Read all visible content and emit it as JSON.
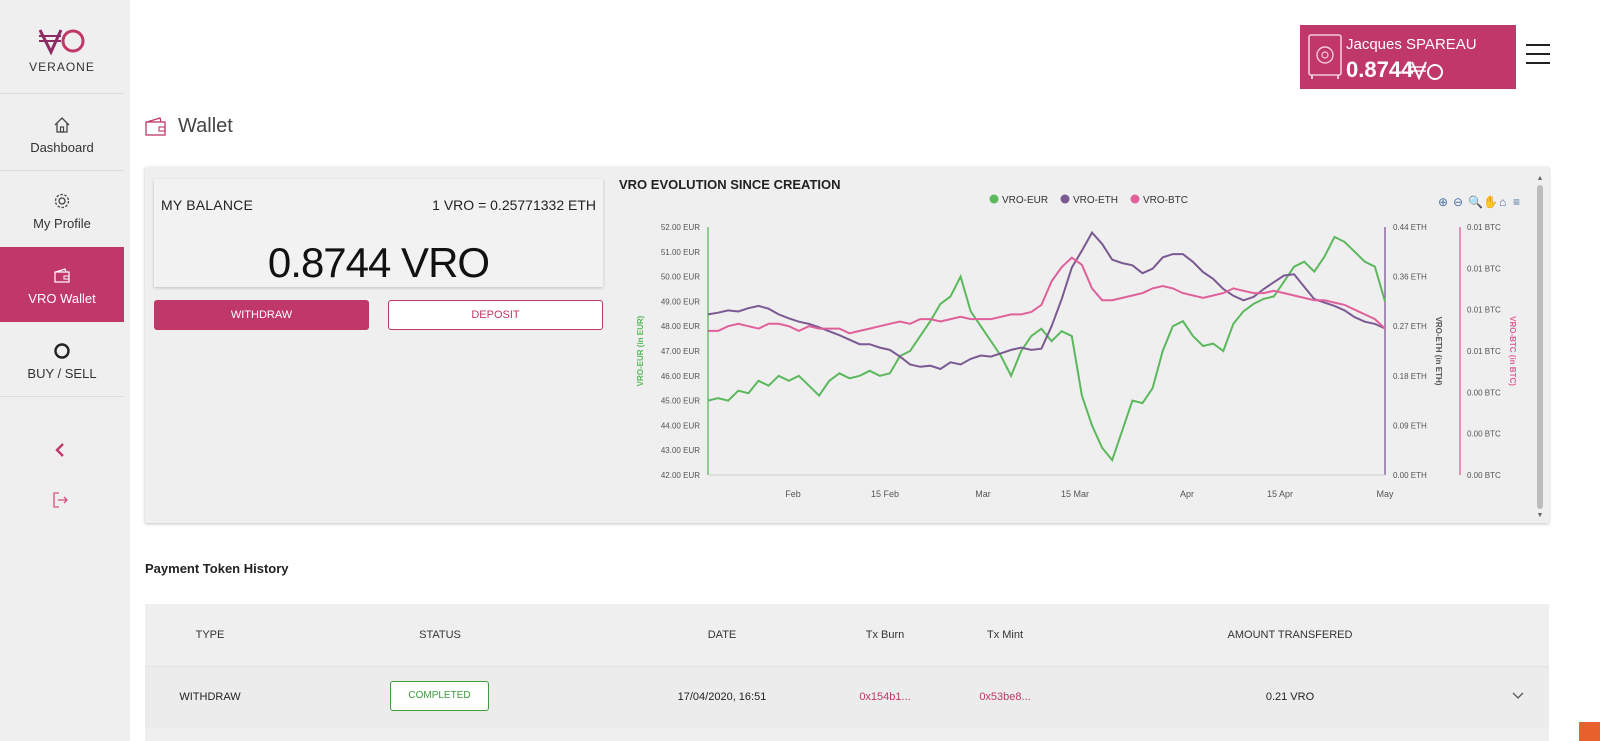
{
  "brand": {
    "name": "VERAONE",
    "accent_color": "#c0376a"
  },
  "sidebar": {
    "items": [
      {
        "label": "Dashboard",
        "icon": "home-icon"
      },
      {
        "label": "My Profile",
        "icon": "gear-icon"
      },
      {
        "label": "VRO Wallet",
        "icon": "wallet-icon",
        "active": true
      },
      {
        "label": "BUY / SELL",
        "icon": "circle-icon"
      }
    ],
    "collapse_icon": "chevron-left-icon",
    "logout_icon": "logout-icon"
  },
  "header": {
    "user_name": "Jacques SPAREAU",
    "user_balance": "0.8744",
    "currency_icon": "vro-symbol-icon",
    "menu_icon": "hamburger-icon"
  },
  "page": {
    "title": "Wallet",
    "title_icon": "wallet-icon"
  },
  "balance": {
    "label": "MY BALANCE",
    "rate": "1 VRO = 0.25771332 ETH",
    "amount": "0.8744 VRO",
    "withdraw_label": "WITHDRAW",
    "deposit_label": "DEPOSIT"
  },
  "chart_data": {
    "type": "line",
    "title": "VRO EVOLUTION SINCE CREATION",
    "legend": [
      "VRO-EUR",
      "VRO-ETH",
      "VRO-BTC"
    ],
    "legend_position": "top-center",
    "colors": {
      "VRO-EUR": "#5cb85c",
      "VRO-ETH": "#7b5a93",
      "VRO-BTC": "#e0609b"
    },
    "x_ticks": [
      "Feb",
      "15 Feb",
      "Mar",
      "15 Mar",
      "Apr",
      "15 Apr",
      "May"
    ],
    "y_left": {
      "label": "VRO-EUR (in EUR)",
      "ticks": [
        "52.00 EUR",
        "51.00 EUR",
        "50.00 EUR",
        "49.00 EUR",
        "48.00 EUR",
        "47.00 EUR",
        "46.00 EUR",
        "45.00 EUR",
        "44.00 EUR",
        "43.00 EUR",
        "42.00 EUR"
      ],
      "range": [
        42,
        52
      ]
    },
    "y_right1": {
      "label": "VRO-ETH (in ETH)",
      "ticks": [
        "0.44 ETH",
        "0.36 ETH",
        "0.27 ETH",
        "0.18 ETH",
        "0.09 ETH",
        "0.00 ETH"
      ],
      "range": [
        0,
        0.44
      ]
    },
    "y_right2": {
      "label": "VRO-BTC (in BTC)",
      "ticks": [
        "0.01 BTC",
        "0.01 BTC",
        "0.01 BTC",
        "0.01 BTC",
        "0.00 BTC",
        "0.00 BTC",
        "0.00 BTC"
      ]
    },
    "toolbar_icons": [
      "zoom-in-icon",
      "zoom-out-icon",
      "magnifier-icon",
      "pan-icon",
      "reset-home-icon",
      "menu-icon"
    ],
    "series": [
      {
        "name": "VRO-EUR",
        "values": [
          45.0,
          45.1,
          45.0,
          45.4,
          45.3,
          45.8,
          45.6,
          46.0,
          45.8,
          46.0,
          45.6,
          45.2,
          45.8,
          46.1,
          45.9,
          46.0,
          46.2,
          46.0,
          46.1,
          46.8,
          47.0,
          47.6,
          48.2,
          48.9,
          49.2,
          50.0,
          48.6,
          48.0,
          47.4,
          46.8,
          46.0,
          47.0,
          47.6,
          47.9,
          47.4,
          47.8,
          47.6,
          45.2,
          44.0,
          43.1,
          42.6,
          43.8,
          45.0,
          44.9,
          45.5,
          47.0,
          48.0,
          48.2,
          47.6,
          47.2,
          47.3,
          47.0,
          48.1,
          48.6,
          48.9,
          49.1,
          49.2,
          49.8,
          50.4,
          50.6,
          50.2,
          50.8,
          51.6,
          51.4,
          51.0,
          50.6,
          50.4,
          49.0
        ]
      },
      {
        "name": "VRO-ETH",
        "values": [
          0.285,
          0.288,
          0.292,
          0.29,
          0.296,
          0.3,
          0.295,
          0.285,
          0.278,
          0.272,
          0.268,
          0.262,
          0.255,
          0.248,
          0.24,
          0.232,
          0.232,
          0.226,
          0.222,
          0.21,
          0.196,
          0.192,
          0.194,
          0.188,
          0.2,
          0.196,
          0.206,
          0.212,
          0.21,
          0.216,
          0.222,
          0.226,
          0.222,
          0.224,
          0.264,
          0.312,
          0.368,
          0.398,
          0.43,
          0.41,
          0.382,
          0.376,
          0.372,
          0.358,
          0.366,
          0.386,
          0.392,
          0.392,
          0.378,
          0.36,
          0.348,
          0.33,
          0.318,
          0.31,
          0.316,
          0.33,
          0.342,
          0.354,
          0.356,
          0.334,
          0.312,
          0.306,
          0.3,
          0.292,
          0.28,
          0.272,
          0.268,
          0.26
        ]
      },
      {
        "name": "VRO-BTC",
        "values": [
          0.0061,
          0.0061,
          0.0063,
          0.0064,
          0.0063,
          0.0062,
          0.0064,
          0.0064,
          0.0063,
          0.0061,
          0.0063,
          0.0062,
          0.0062,
          0.0062,
          0.006,
          0.0061,
          0.0062,
          0.0063,
          0.0064,
          0.0065,
          0.0064,
          0.0066,
          0.0066,
          0.0065,
          0.0066,
          0.0067,
          0.0066,
          0.0066,
          0.0066,
          0.0067,
          0.0068,
          0.0068,
          0.0069,
          0.0072,
          0.0082,
          0.0088,
          0.0092,
          0.0089,
          0.0079,
          0.0074,
          0.0074,
          0.0075,
          0.0076,
          0.0077,
          0.0079,
          0.008,
          0.0079,
          0.0077,
          0.0076,
          0.0075,
          0.0076,
          0.0077,
          0.0079,
          0.0078,
          0.0077,
          0.0077,
          0.0078,
          0.0077,
          0.0076,
          0.0075,
          0.0074,
          0.0074,
          0.0073,
          0.0072,
          0.007,
          0.0068,
          0.0066,
          0.0062
        ]
      }
    ]
  },
  "history": {
    "title": "Payment Token History",
    "columns": [
      "TYPE",
      "STATUS",
      "DATE",
      "Tx Burn",
      "Tx Mint",
      "AMOUNT TRANSFERED"
    ],
    "rows": [
      {
        "type": "WITHDRAW",
        "status": "COMPLETED",
        "date": "17/04/2020, 16:51",
        "tx_burn": "0x154b1...",
        "tx_mint": "0x53be8...",
        "amount": "0.21 VRO"
      }
    ]
  }
}
